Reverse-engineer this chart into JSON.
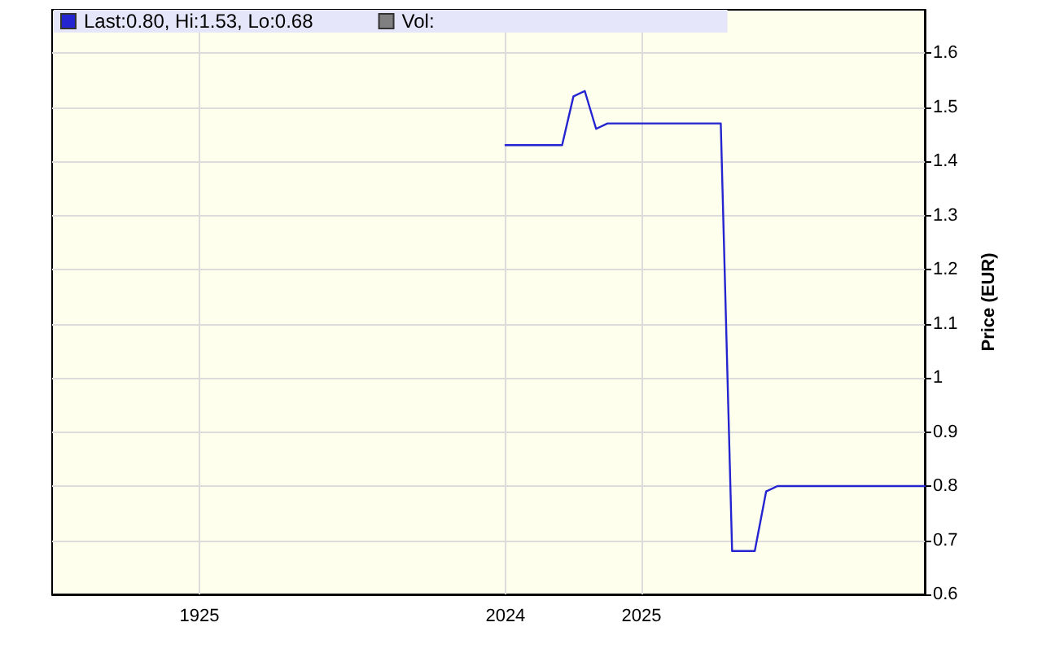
{
  "chart_data": {
    "type": "line",
    "ylabel": "Price (EUR)",
    "categories": [
      null,
      null,
      null,
      null,
      null,
      null,
      null,
      null,
      null,
      null,
      null,
      null,
      null,
      "1925",
      null,
      null,
      null,
      null,
      null,
      null,
      null,
      null,
      null,
      null,
      null,
      null,
      null,
      null,
      null,
      null,
      null,
      null,
      null,
      null,
      null,
      null,
      null,
      null,
      null,
      null,
      "2024",
      null,
      null,
      null,
      null,
      null,
      null,
      null,
      null,
      null,
      null,
      null,
      "2025",
      null,
      null,
      null,
      null,
      null,
      null,
      null,
      null,
      null,
      null,
      null,
      null,
      null,
      null,
      null,
      null,
      null,
      null,
      null,
      null,
      null,
      null,
      null,
      null,
      null
    ],
    "ylim": [
      0.6,
      1.68
    ],
    "yticks": [
      0.6,
      0.7,
      0.8,
      0.9,
      1,
      1.1,
      1.2,
      1.3,
      1.4,
      1.5,
      1.6
    ],
    "grid": true,
    "legend": "top left",
    "marker": "none",
    "line_style": "solid",
    "series": [
      {
        "name": "Last:0.80, Hi:1.53, Lo:0.68",
        "color": "#2424d0",
        "values": [
          null,
          null,
          null,
          null,
          null,
          null,
          null,
          null,
          null,
          null,
          null,
          null,
          null,
          null,
          null,
          null,
          null,
          null,
          null,
          null,
          null,
          null,
          null,
          null,
          null,
          null,
          null,
          null,
          null,
          null,
          null,
          null,
          null,
          null,
          null,
          null,
          null,
          null,
          null,
          null,
          1.43,
          1.43,
          1.43,
          1.43,
          1.43,
          1.43,
          1.52,
          1.53,
          1.46,
          1.47,
          1.47,
          1.47,
          1.47,
          1.47,
          1.47,
          1.47,
          1.47,
          1.47,
          1.47,
          1.47,
          0.68,
          0.68,
          0.68,
          0.79,
          0.8,
          0.8,
          0.8,
          0.8,
          0.8,
          0.8,
          0.8,
          0.8,
          0.8,
          0.8,
          0.8,
          0.8,
          0.8,
          0.8
        ]
      },
      {
        "name": "Vol:",
        "color": "#808080",
        "values": [
          null,
          null,
          null,
          null,
          null,
          null,
          null,
          null,
          null,
          null,
          null,
          null,
          null,
          null,
          null,
          null,
          null,
          null,
          null,
          null,
          null,
          null,
          null,
          null,
          null,
          null,
          null,
          null,
          null,
          null,
          null,
          null,
          null,
          null,
          null,
          null,
          null,
          null,
          null,
          null,
          null,
          null,
          null,
          null,
          null,
          null,
          null,
          null,
          null,
          null,
          null,
          null,
          null,
          null,
          null,
          null,
          null,
          null,
          null,
          null,
          null,
          null,
          null,
          null,
          null,
          null,
          null,
          null,
          null,
          null,
          null,
          null,
          null,
          null,
          null,
          null,
          null,
          null
        ]
      }
    ]
  }
}
